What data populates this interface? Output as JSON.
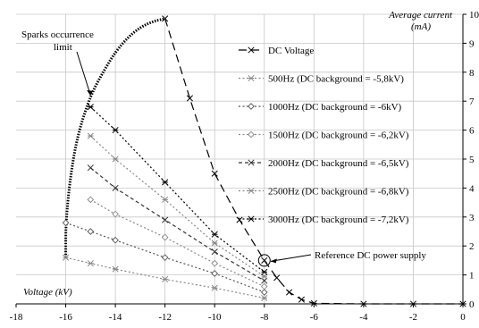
{
  "chart_data": {
    "type": "line",
    "xlabel": "Voltage (kV)",
    "ylabel": "Average current\n(mA)",
    "xlim": [
      -18,
      0
    ],
    "ylim": [
      0,
      10
    ],
    "x_ticks": [
      -18,
      -16,
      -14,
      -12,
      -10,
      -8,
      -6,
      -4,
      -2,
      0
    ],
    "y_ticks": [
      0,
      1,
      2,
      3,
      4,
      5,
      6,
      7,
      8,
      9,
      10
    ],
    "y_axis_side": "right",
    "grid": true,
    "legend_position": "right",
    "series": [
      {
        "name": "DC Voltage",
        "color": "#000000",
        "dash": "long-dash",
        "marker": "x",
        "points": [
          [
            -12,
            9.85
          ],
          [
            -11,
            7.1
          ],
          [
            -10,
            4.5
          ],
          [
            -9,
            2.9
          ],
          [
            -8,
            1.5
          ],
          [
            -7.5,
            0.9
          ],
          [
            -7,
            0.4
          ],
          [
            -6.5,
            0.15
          ],
          [
            -6,
            0.02
          ],
          [
            -4,
            0
          ],
          [
            -2,
            0
          ],
          [
            0,
            0
          ]
        ]
      },
      {
        "name": "500Hz (DC background = -5,8kV)",
        "color": "#888888",
        "dash": "dot",
        "marker": "asterisk",
        "points": [
          [
            -16,
            1.6
          ],
          [
            -15,
            1.4
          ],
          [
            -14,
            1.2
          ],
          [
            -12,
            0.85
          ],
          [
            -10,
            0.55
          ],
          [
            -8,
            0.2
          ]
        ]
      },
      {
        "name": "1000Hz (DC background = -6kV)",
        "color": "#555555",
        "dash": "dot",
        "marker": "diamond",
        "points": [
          [
            -16,
            2.8
          ],
          [
            -15,
            2.5
          ],
          [
            -14,
            2.2
          ],
          [
            -12,
            1.6
          ],
          [
            -10,
            1.05
          ],
          [
            -8,
            0.4
          ]
        ]
      },
      {
        "name": "1500Hz (DC background = -6,2kV)",
        "color": "#888888",
        "dash": "dot",
        "marker": "diamond",
        "points": [
          [
            -15,
            3.6
          ],
          [
            -14,
            3.1
          ],
          [
            -12,
            2.3
          ],
          [
            -10,
            1.4
          ],
          [
            -8,
            0.6
          ]
        ]
      },
      {
        "name": "2000Hz (DC background = -6,5kV)",
        "color": "#333333",
        "dash": "dash",
        "marker": "x",
        "points": [
          [
            -15,
            4.7
          ],
          [
            -14,
            4.0
          ],
          [
            -12,
            2.9
          ],
          [
            -10,
            1.8
          ],
          [
            -8,
            0.8
          ]
        ]
      },
      {
        "name": "2500Hz (DC background = -6,8kV)",
        "color": "#888888",
        "dash": "dot",
        "marker": "asterisk",
        "points": [
          [
            -15,
            5.8
          ],
          [
            -14,
            5.0
          ],
          [
            -12,
            3.6
          ],
          [
            -10,
            2.1
          ],
          [
            -8,
            0.95
          ]
        ]
      },
      {
        "name": "3000Hz (DC background = -7,2kV)",
        "color": "#000000",
        "dash": "dot",
        "marker": "asterisk",
        "points": [
          [
            -15,
            6.8
          ],
          [
            -14,
            6.0
          ],
          [
            -12,
            4.2
          ],
          [
            -10,
            2.4
          ],
          [
            -8,
            1.1
          ]
        ]
      }
    ],
    "sparks_limit": {
      "points": [
        [
          -16,
          1.6
        ],
        [
          -16,
          2.8
        ],
        [
          -15.8,
          4.5
        ],
        [
          -15.5,
          5.9
        ],
        [
          -15,
          7.2
        ],
        [
          -14.5,
          8.0
        ],
        [
          -14,
          8.7
        ],
        [
          -13.5,
          9.2
        ],
        [
          -13,
          9.55
        ],
        [
          -12.5,
          9.75
        ],
        [
          -12,
          9.85
        ]
      ]
    },
    "annotations": [
      {
        "text": "Sparks occurrence\nlimit",
        "target": [
          -14.9,
          7.35
        ]
      },
      {
        "text": "Reference DC power supply",
        "target": [
          -8,
          1.5
        ]
      }
    ]
  }
}
